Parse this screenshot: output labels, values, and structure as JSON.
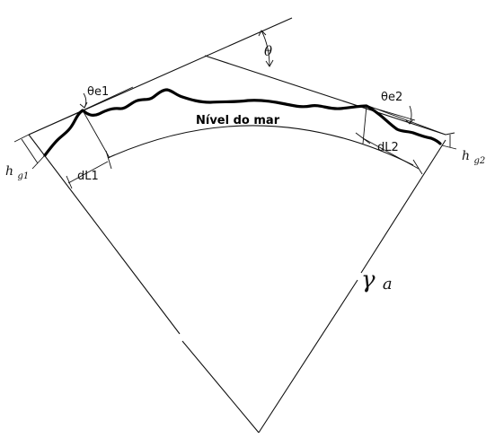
{
  "labels": {
    "theta": "θ",
    "theta_e1": "θe1",
    "theta_e2": "θe2",
    "sea_level": "Nível do mar",
    "d_l1": "dL1",
    "d_l2": "dL2",
    "h_g1_base": "h",
    "h_g1_sub": "g1",
    "h_g2_base": "h",
    "h_g2_sub": "g2",
    "gamma_base": "γ",
    "gamma_sub": "a"
  },
  "colors": {
    "line": "#111111",
    "terrain": "#000000",
    "background": "#ffffff"
  }
}
